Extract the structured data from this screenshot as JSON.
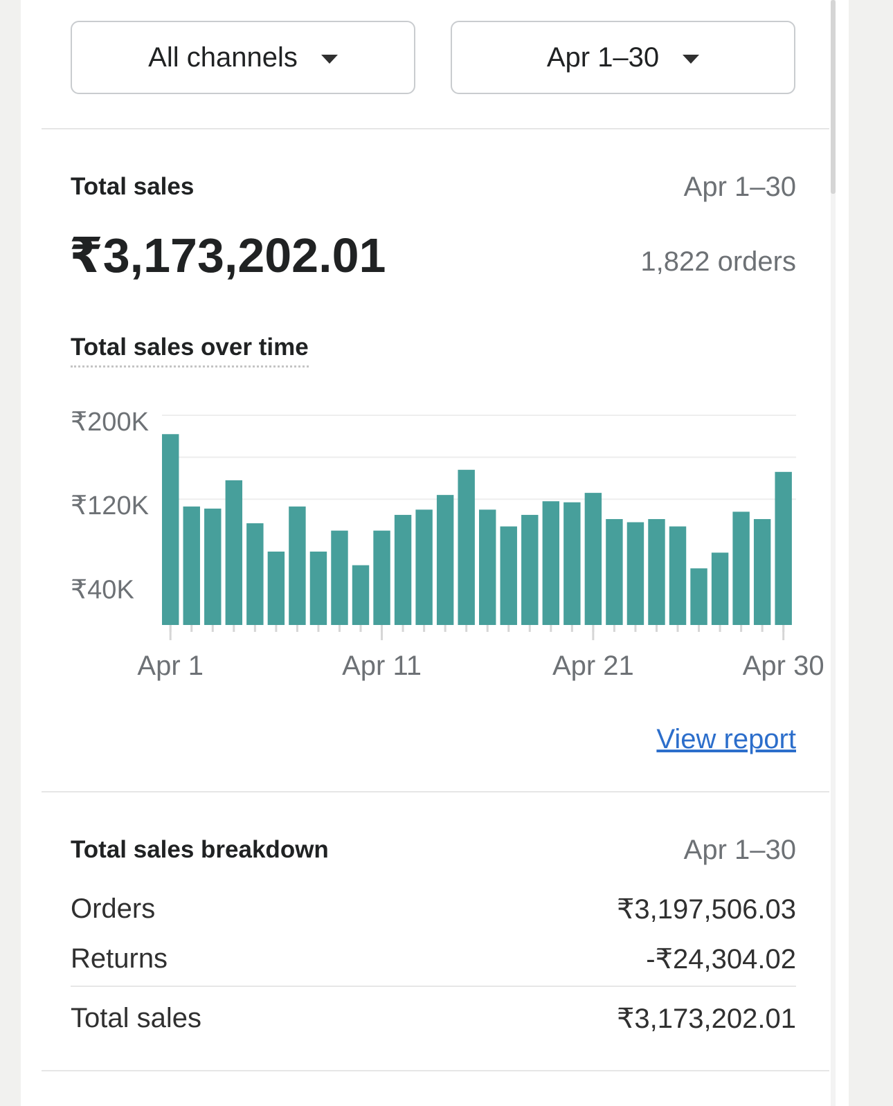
{
  "filters": {
    "channel_label": "All channels",
    "date_label": "Apr 1–30"
  },
  "summary": {
    "title": "Total sales",
    "date_range": "Apr 1–30",
    "total_amount": "₹3,173,202.01",
    "orders_count": "1,822 orders"
  },
  "chart_section": {
    "title": "Total sales over time",
    "view_report_label": "View report"
  },
  "chart_data": {
    "type": "bar",
    "title": "Total sales over time",
    "ylim": [
      0,
      200000
    ],
    "y_ticks": [
      {
        "value": 200000,
        "label": "₹200K"
      },
      {
        "value": 120000,
        "label": "₹120K"
      },
      {
        "value": 40000,
        "label": "₹40K"
      }
    ],
    "gridlines": [
      200000,
      160000,
      120000
    ],
    "x_labels": [
      {
        "index": 0,
        "label": "Apr 1"
      },
      {
        "index": 10,
        "label": "Apr 11"
      },
      {
        "index": 20,
        "label": "Apr 21"
      },
      {
        "index": 29,
        "label": "Apr 30"
      }
    ],
    "categories": [
      "Apr 1",
      "Apr 2",
      "Apr 3",
      "Apr 4",
      "Apr 5",
      "Apr 6",
      "Apr 7",
      "Apr 8",
      "Apr 9",
      "Apr 10",
      "Apr 11",
      "Apr 12",
      "Apr 13",
      "Apr 14",
      "Apr 15",
      "Apr 16",
      "Apr 17",
      "Apr 18",
      "Apr 19",
      "Apr 20",
      "Apr 21",
      "Apr 22",
      "Apr 23",
      "Apr 24",
      "Apr 25",
      "Apr 26",
      "Apr 27",
      "Apr 28",
      "Apr 29",
      "Apr 30"
    ],
    "values": [
      182000,
      113000,
      111000,
      138000,
      97000,
      70000,
      113000,
      70000,
      90000,
      57000,
      90000,
      105000,
      110000,
      124000,
      148000,
      110000,
      94000,
      105000,
      118000,
      117000,
      126000,
      101000,
      98000,
      101000,
      94000,
      54000,
      69000,
      108000,
      101000,
      146000
    ],
    "bar_color": "#479f9b",
    "grid": true
  },
  "breakdown": {
    "title": "Total sales breakdown",
    "date_range": "Apr 1–30",
    "rows": [
      {
        "label": "Orders",
        "value": "₹3,197,506.03"
      },
      {
        "label": "Returns",
        "value": "-₹24,304.02"
      }
    ],
    "total": {
      "label": "Total sales",
      "value": "₹3,173,202.01"
    }
  }
}
